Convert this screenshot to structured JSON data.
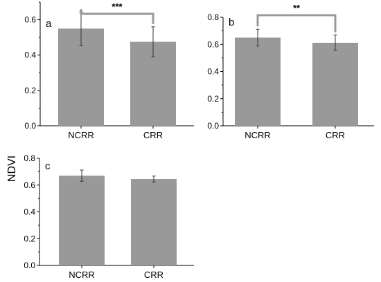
{
  "figure": {
    "ylabel": "NDVI"
  },
  "chart_data": [
    {
      "type": "bar",
      "panel": "a",
      "categories": [
        "NCRR",
        "CRR"
      ],
      "values": [
        0.55,
        0.475
      ],
      "errors": [
        0.095,
        0.085
      ],
      "ylim": [
        0,
        0.7
      ],
      "yticks": [
        "0.0",
        "0.2",
        "0.4",
        "0.6"
      ],
      "significance": "***",
      "bar_color": "#999999"
    },
    {
      "type": "bar",
      "panel": "b",
      "categories": [
        "NCRR",
        "CRR"
      ],
      "values": [
        0.65,
        0.612
      ],
      "errors": [
        0.062,
        0.057
      ],
      "ylim": [
        0,
        0.8
      ],
      "yticks": [
        "0.0",
        "0.2",
        "0.4",
        "0.6",
        "0.8"
      ],
      "significance": "**",
      "bar_color": "#999999"
    },
    {
      "type": "bar",
      "panel": "c",
      "categories": [
        "NCRR",
        "CRR"
      ],
      "values": [
        0.67,
        0.645
      ],
      "errors": [
        0.042,
        0.022
      ],
      "ylim": [
        0,
        0.8
      ],
      "yticks": [
        "0.0",
        "0.2",
        "0.4",
        "0.6",
        "0.8"
      ],
      "significance": "",
      "bar_color": "#999999"
    }
  ]
}
